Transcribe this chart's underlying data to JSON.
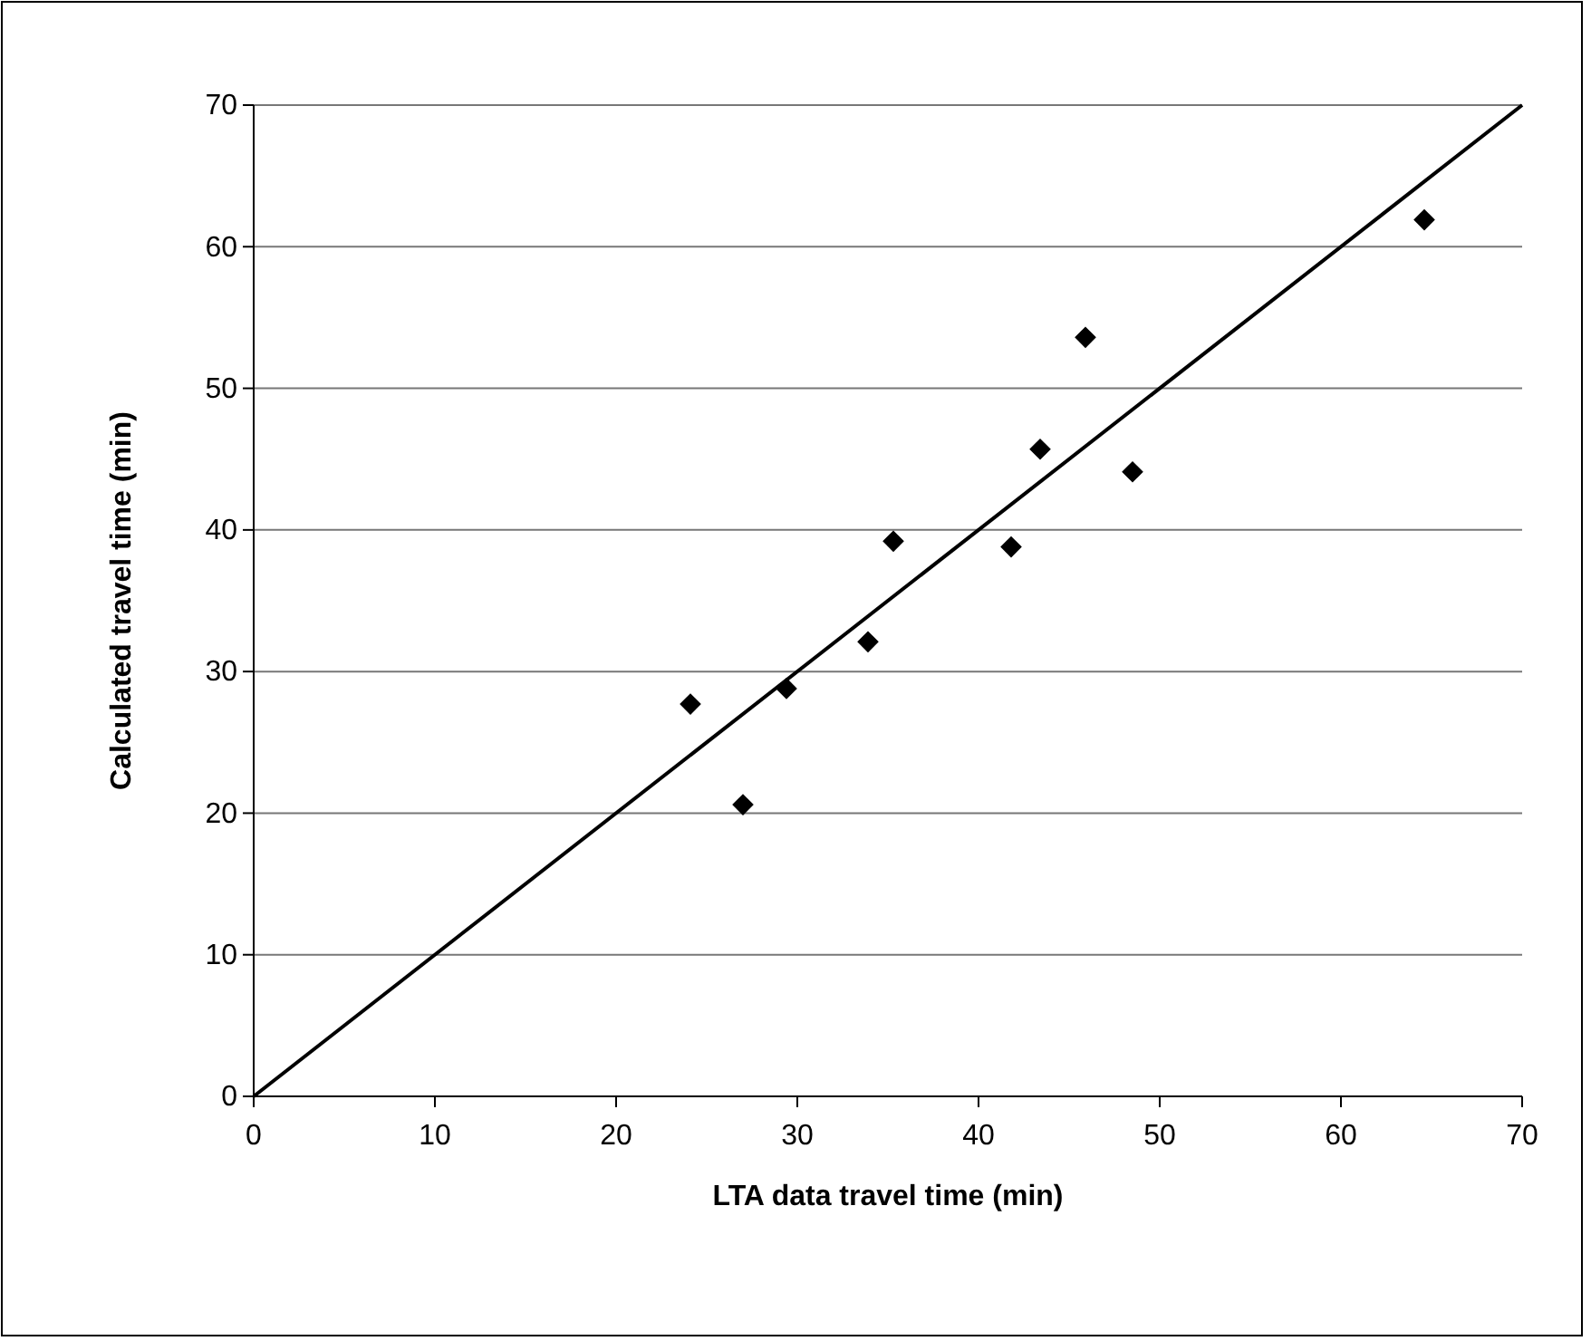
{
  "chart_data": {
    "type": "scatter",
    "xlabel": "LTA data travel time (min)",
    "ylabel": "Calculated travel time (min)",
    "series": [
      {
        "color": "#000000",
        "marker": "diamond",
        "x": [
          24.1,
          27.0,
          29.4,
          33.9,
          35.3,
          41.8,
          43.4,
          45.9,
          48.5,
          64.6
        ],
        "values": [
          27.7,
          20.6,
          28.8,
          32.1,
          39.2,
          38.8,
          45.7,
          53.6,
          44.1,
          61.9
        ]
      },
      {
        "type": "line",
        "color": "#000000",
        "marker": "none",
        "line_style": "solid",
        "x": [
          0,
          70
        ],
        "values": [
          0,
          70
        ]
      }
    ],
    "xlim": [
      0,
      70
    ],
    "xticks": [
      0,
      10,
      20,
      30,
      40,
      50,
      60,
      70
    ],
    "ylim": [
      0,
      70
    ],
    "yticks": [
      0,
      10,
      20,
      30,
      40,
      50,
      60,
      70
    ],
    "grid": "y"
  }
}
